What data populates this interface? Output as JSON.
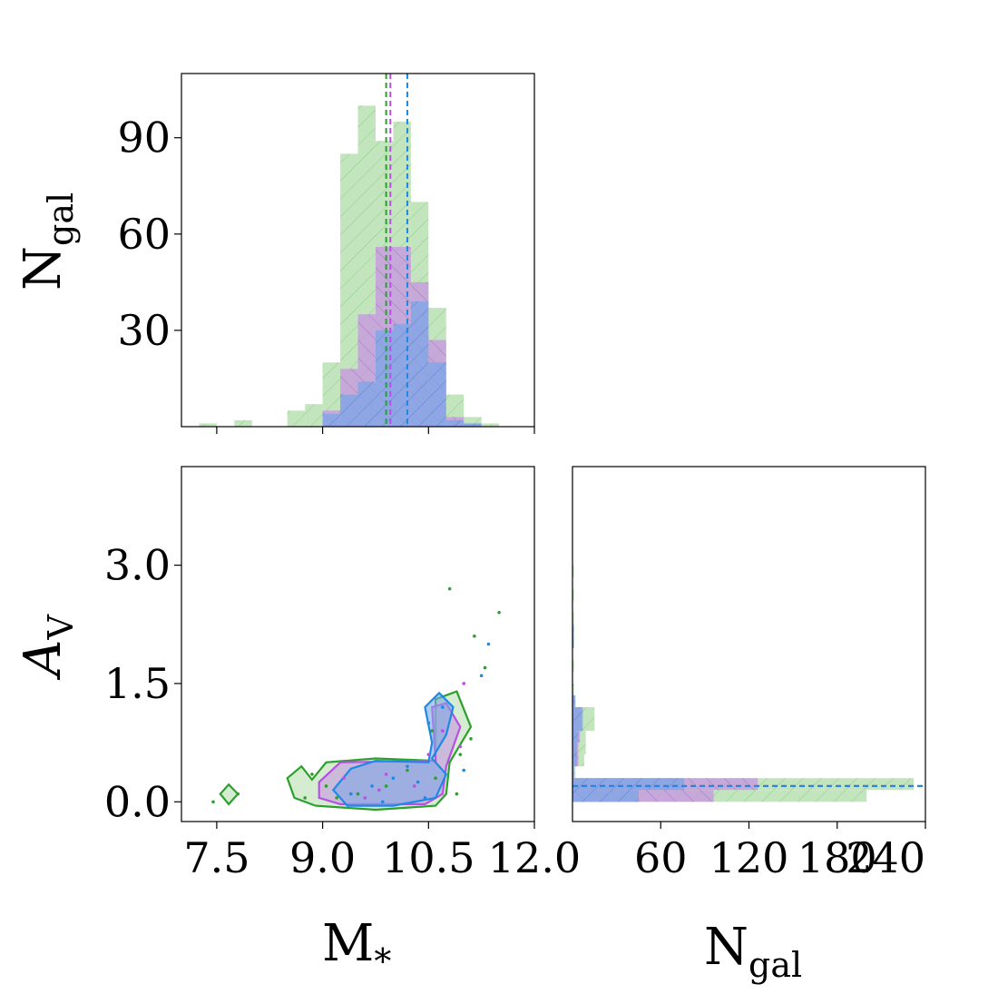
{
  "colors": {
    "green": "#2ca02c",
    "green_fill": "#b9e0b3",
    "purple": "#b84fe6",
    "purple_fill": "#c79ae0",
    "blue": "#1e88e5",
    "blue_fill": "#7fa6e6"
  },
  "labels": {
    "x_main": "M",
    "x_main_sub": "*",
    "y_top": "N",
    "y_top_sub": "gal",
    "y_bottom": "A",
    "y_bottom_sub": "V",
    "x_right": "N",
    "x_right_sub": "gal"
  },
  "chart_data": [
    {
      "type": "bar",
      "panel": "top-left histogram",
      "x_range": [
        7.0,
        12.0
      ],
      "ylim": [
        0,
        110
      ],
      "yticks": [
        "30",
        "60",
        "90"
      ],
      "bin_width": 0.25,
      "series": [
        {
          "color": "green",
          "bins": [
            [
              7.25,
              1
            ],
            [
              7.75,
              2
            ],
            [
              8.5,
              5
            ],
            [
              8.75,
              7
            ],
            [
              9.0,
              20
            ],
            [
              9.25,
              85
            ],
            [
              9.5,
              100
            ],
            [
              9.75,
              89
            ],
            [
              10.0,
              95
            ],
            [
              10.25,
              70
            ],
            [
              10.5,
              37
            ],
            [
              10.75,
              10
            ],
            [
              11.0,
              3
            ],
            [
              11.25,
              1
            ]
          ],
          "median": 9.9
        },
        {
          "color": "purple",
          "bins": [
            [
              9.0,
              5
            ],
            [
              9.25,
              18
            ],
            [
              9.5,
              35
            ],
            [
              9.75,
              56
            ],
            [
              10.0,
              56
            ],
            [
              10.25,
              45
            ],
            [
              10.5,
              27
            ],
            [
              10.75,
              3
            ],
            [
              11.0,
              1
            ]
          ],
          "median": 9.96
        },
        {
          "color": "blue",
          "bins": [
            [
              9.0,
              4
            ],
            [
              9.25,
              10
            ],
            [
              9.5,
              14
            ],
            [
              9.75,
              30
            ],
            [
              10.0,
              32
            ],
            [
              10.25,
              39
            ],
            [
              10.5,
              20
            ],
            [
              10.75,
              2
            ],
            [
              11.0,
              1
            ]
          ],
          "median": 10.2
        }
      ]
    },
    {
      "type": "scatter",
      "panel": "bottom-left contour",
      "xlim": [
        7.0,
        12.0
      ],
      "ylim": [
        -0.25,
        4.25
      ],
      "xticks": [
        "7.5",
        "9.0",
        "10.5",
        "12.0"
      ],
      "yticks": [
        "0.0",
        "1.5",
        "3.0"
      ],
      "contours": {
        "green": [
          [
            [
              7.55,
              0.1
            ],
            [
              7.67,
              0.22
            ],
            [
              7.8,
              0.1
            ],
            [
              7.67,
              -0.03
            ]
          ],
          [
            [
              8.5,
              0.3
            ],
            [
              8.7,
              0.45
            ],
            [
              8.85,
              0.28
            ],
            [
              9.05,
              0.5
            ],
            [
              9.75,
              0.55
            ],
            [
              10.6,
              0.52
            ],
            [
              10.6,
              1.3
            ],
            [
              10.9,
              1.4
            ],
            [
              11.1,
              0.95
            ],
            [
              10.8,
              0.5
            ],
            [
              10.75,
              0.1
            ],
            [
              10.6,
              -0.05
            ],
            [
              9.75,
              -0.1
            ],
            [
              8.9,
              -0.05
            ],
            [
              8.6,
              0.05
            ]
          ]
        ],
        "purple": [
          [
            [
              8.95,
              0.25
            ],
            [
              9.25,
              0.5
            ],
            [
              10.6,
              0.52
            ],
            [
              10.55,
              1.2
            ],
            [
              10.75,
              1.25
            ],
            [
              10.95,
              0.95
            ],
            [
              10.75,
              0.45
            ],
            [
              10.7,
              0.1
            ],
            [
              10.45,
              -0.03
            ],
            [
              9.25,
              -0.03
            ],
            [
              8.95,
              0.05
            ]
          ]
        ],
        "blue": [
          [
            [
              9.15,
              0.15
            ],
            [
              9.4,
              0.42
            ],
            [
              9.75,
              0.52
            ],
            [
              10.5,
              0.5
            ],
            [
              10.55,
              0.75
            ],
            [
              10.45,
              1.2
            ],
            [
              10.65,
              1.38
            ],
            [
              10.85,
              1.2
            ],
            [
              10.75,
              0.85
            ],
            [
              10.55,
              0.55
            ],
            [
              10.75,
              0.35
            ],
            [
              10.6,
              0.05
            ],
            [
              10.0,
              -0.05
            ],
            [
              9.35,
              -0.05
            ]
          ]
        ]
      },
      "points": {
        "green": [
          [
            7.45,
            0.0
          ],
          [
            7.8,
            0.1
          ],
          [
            8.75,
            0.05
          ],
          [
            8.85,
            0.35
          ],
          [
            9.05,
            0.2
          ],
          [
            9.2,
            0.05
          ],
          [
            9.5,
            0.1
          ],
          [
            10.55,
            0.9
          ],
          [
            10.6,
            0.3
          ],
          [
            10.8,
            2.7
          ],
          [
            11.15,
            2.1
          ],
          [
            11.3,
            1.7
          ],
          [
            11.5,
            2.4
          ],
          [
            10.9,
            0.1
          ],
          [
            10.95,
            0.6
          ],
          [
            11.1,
            0.8
          ],
          [
            9.9,
            0.2
          ],
          [
            10.2,
            0.4
          ]
        ],
        "purple": [
          [
            9.3,
            0.3
          ],
          [
            9.6,
            0.05
          ],
          [
            9.9,
            0.35
          ],
          [
            10.3,
            0.2
          ],
          [
            10.7,
            0.9
          ],
          [
            10.95,
            0.7
          ],
          [
            11.0,
            1.5
          ],
          [
            10.5,
            0.6
          ],
          [
            9.8,
            0.15
          ]
        ],
        "blue": [
          [
            9.4,
            0.1
          ],
          [
            9.7,
            0.2
          ],
          [
            10.0,
            0.3
          ],
          [
            10.2,
            0.45
          ],
          [
            10.5,
            1.0
          ],
          [
            10.7,
            1.2
          ],
          [
            11.0,
            0.4
          ],
          [
            11.35,
            2.0
          ],
          [
            10.35,
            0.25
          ],
          [
            9.85,
            0.0
          ],
          [
            11.25,
            1.6
          ],
          [
            10.45,
            0.05
          ]
        ]
      }
    },
    {
      "type": "bar",
      "orientation": "horizontal",
      "panel": "bottom-right histogram",
      "xlim": [
        0,
        240
      ],
      "xticks": [
        "60",
        "120",
        "180",
        "240"
      ],
      "ylim": [
        -0.25,
        4.25
      ],
      "bin_height": 0.15,
      "series": [
        {
          "color": "green",
          "bins": [
            [
              0.0,
              200
            ],
            [
              0.15,
              232
            ],
            [
              0.3,
              2
            ],
            [
              0.45,
              8
            ],
            [
              0.6,
              9
            ],
            [
              0.75,
              9
            ],
            [
              0.9,
              15
            ],
            [
              1.05,
              15
            ],
            [
              1.2,
              2
            ],
            [
              1.35,
              1
            ],
            [
              1.65,
              1
            ],
            [
              1.95,
              1
            ],
            [
              2.25,
              1
            ],
            [
              2.55,
              1
            ],
            [
              2.85,
              1
            ]
          ],
          "median": 0.2
        },
        {
          "color": "purple",
          "bins": [
            [
              0.0,
              96
            ],
            [
              0.15,
              126
            ],
            [
              0.3,
              1
            ],
            [
              0.45,
              4
            ],
            [
              0.6,
              4
            ],
            [
              0.75,
              5
            ],
            [
              0.9,
              6
            ],
            [
              1.05,
              6
            ],
            [
              1.2,
              1
            ]
          ],
          "median": 0.2
        },
        {
          "color": "blue",
          "bins": [
            [
              0.0,
              45
            ],
            [
              0.15,
              76
            ],
            [
              0.3,
              1
            ],
            [
              0.45,
              3
            ],
            [
              0.6,
              3
            ],
            [
              0.75,
              4
            ],
            [
              0.9,
              7
            ],
            [
              1.05,
              7
            ],
            [
              1.2,
              2
            ],
            [
              1.95,
              1
            ],
            [
              2.1,
              1
            ]
          ],
          "median": 0.2
        }
      ]
    }
  ]
}
